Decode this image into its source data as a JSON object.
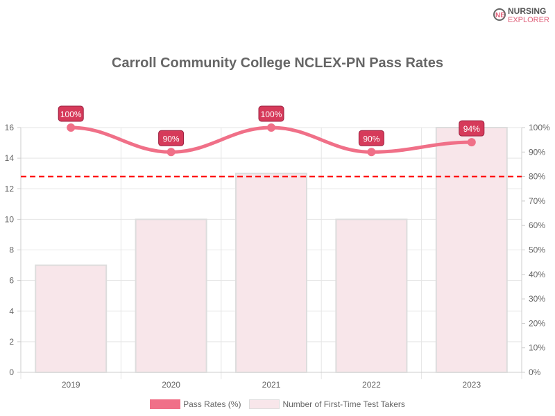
{
  "logo": {
    "line1": "NURSING",
    "line2": "EXPLORER"
  },
  "chart_data": {
    "type": "bar+line",
    "title": "Carroll Community College NCLEX-PN Pass Rates",
    "categories": [
      "2019",
      "2020",
      "2021",
      "2022",
      "2023"
    ],
    "series": [
      {
        "name": "Pass Rates (%)",
        "type": "line",
        "axis": "right",
        "values": [
          100,
          90,
          100,
          90,
          94
        ],
        "labels": [
          "100%",
          "90%",
          "100%",
          "90%",
          "94%"
        ],
        "color": "#f07088"
      },
      {
        "name": "Number of First-Time Test Takers",
        "type": "bar",
        "axis": "left",
        "values": [
          7,
          10,
          13,
          10,
          16
        ],
        "color": "#f8e6ea"
      }
    ],
    "reference_line": {
      "axis": "right",
      "value": 80,
      "color": "#ff0000",
      "style": "dashed"
    },
    "y_left": {
      "range": [
        0,
        16
      ],
      "ticks": [
        "0",
        "2",
        "4",
        "6",
        "8",
        "10",
        "12",
        "14",
        "16"
      ]
    },
    "y_right": {
      "range": [
        0,
        100
      ],
      "ticks": [
        "0%",
        "10%",
        "20%",
        "30%",
        "40%",
        "50%",
        "60%",
        "70%",
        "80%",
        "90%",
        "100%"
      ]
    },
    "grid": true,
    "legend": "bottom"
  }
}
